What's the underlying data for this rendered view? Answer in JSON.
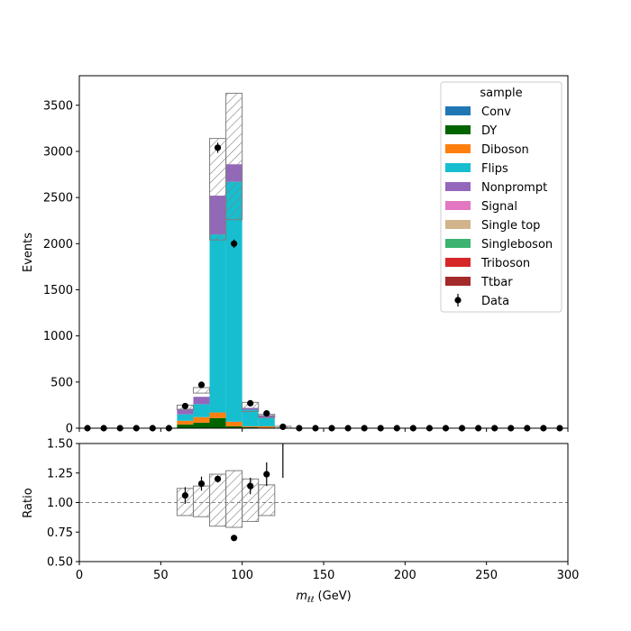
{
  "chart_data": {
    "type": "bar",
    "stacked": true,
    "upper": {
      "ylabel": "Events",
      "ylim": [
        0,
        3820
      ],
      "yticks": [
        0,
        500,
        1000,
        1500,
        2000,
        2500,
        3000,
        3500
      ]
    },
    "lower": {
      "ylabel": "Ratio",
      "ylim": [
        0.5,
        1.5
      ],
      "yticks": [
        "0.50",
        "0.75",
        "1.00",
        "1.25",
        "1.50"
      ],
      "reference_line": 1.0
    },
    "x": {
      "label_math": "m",
      "label_sub": "ℓℓ",
      "label_unit": " (GeV)",
      "xlim": [
        0,
        300
      ],
      "xticks": [
        0,
        50,
        100,
        150,
        200,
        250,
        300
      ],
      "bin_edges": [
        0,
        10,
        20,
        30,
        40,
        50,
        60,
        70,
        80,
        90,
        100,
        110,
        120,
        130,
        140,
        150,
        160,
        170,
        180,
        190,
        200,
        210,
        220,
        230,
        240,
        250,
        260,
        270,
        280,
        290,
        300
      ]
    },
    "legend": {
      "title": "sample",
      "placement": "upper right"
    },
    "mc_bins_start": 6,
    "series": [
      {
        "name": "Conv",
        "color": "#1f77b4",
        "values": [
          0,
          0,
          0,
          0,
          0,
          0,
          0
        ]
      },
      {
        "name": "DY",
        "color": "#006400",
        "values": [
          40,
          60,
          110,
          20,
          10,
          5,
          0
        ]
      },
      {
        "name": "Diboson",
        "color": "#ff7f0e",
        "values": [
          40,
          60,
          60,
          50,
          10,
          15,
          0
        ]
      },
      {
        "name": "Flips",
        "color": "#17becf",
        "values": [
          70,
          140,
          1930,
          2600,
          180,
          90,
          0
        ]
      },
      {
        "name": "Nonprompt",
        "color": "#9467bd",
        "values": [
          60,
          80,
          420,
          190,
          20,
          30,
          0
        ]
      },
      {
        "name": "Signal",
        "color": "#e377c2",
        "values": [
          0,
          0,
          0,
          0,
          0,
          0,
          0
        ]
      },
      {
        "name": "Single top",
        "color": "#d2b48c",
        "values": [
          0,
          0,
          0,
          0,
          0,
          0,
          0
        ]
      },
      {
        "name": "Singleboson",
        "color": "#3cb371",
        "values": [
          0,
          0,
          0,
          0,
          0,
          0,
          0
        ]
      },
      {
        "name": "Triboson",
        "color": "#d62728",
        "values": [
          0,
          0,
          0,
          0,
          0,
          0,
          0
        ]
      },
      {
        "name": "Ttbar",
        "color": "#a52a2a",
        "values": [
          0,
          0,
          0,
          0,
          0,
          0,
          0
        ]
      }
    ],
    "uncertainty": {
      "low": [
        200,
        380,
        2040,
        2260,
        180,
        115,
        0
      ],
      "high": [
        250,
        440,
        3140,
        3630,
        280,
        150,
        20
      ]
    },
    "ratio_band": {
      "low": [
        0.89,
        0.88,
        0.8,
        0.79,
        0.84,
        0.89,
        null
      ],
      "high": [
        1.12,
        1.14,
        1.24,
        1.27,
        1.2,
        1.15,
        null
      ]
    },
    "data": {
      "name": "Data",
      "x": [
        5,
        15,
        25,
        35,
        45,
        55,
        65,
        75,
        85,
        95,
        105,
        115,
        125,
        135,
        145,
        155,
        165,
        175,
        185,
        195,
        205,
        215,
        225,
        235,
        245,
        255,
        265,
        275,
        285,
        295
      ],
      "y": [
        0,
        0,
        0,
        0,
        0,
        0,
        240,
        470,
        3040,
        2000,
        270,
        160,
        15,
        0,
        0,
        0,
        0,
        0,
        0,
        0,
        0,
        0,
        0,
        0,
        0,
        0,
        0,
        0,
        0,
        0
      ],
      "yerr": [
        0,
        0,
        0,
        0,
        0,
        0,
        16,
        22,
        55,
        45,
        16,
        13,
        4,
        0,
        0,
        0,
        0,
        0,
        0,
        0,
        0,
        0,
        0,
        0,
        0,
        0,
        0,
        0,
        0,
        0
      ],
      "ratio_x": [
        65,
        75,
        85,
        95,
        105,
        115
      ],
      "ratio": [
        1.06,
        1.16,
        1.2,
        0.7,
        1.14,
        1.24
      ],
      "ratio_err": [
        0.07,
        0.06,
        0.03,
        0.02,
        0.07,
        0.1
      ],
      "ratio_offscale_x": 125,
      "ratio_offscale_from": 1.21
    }
  }
}
